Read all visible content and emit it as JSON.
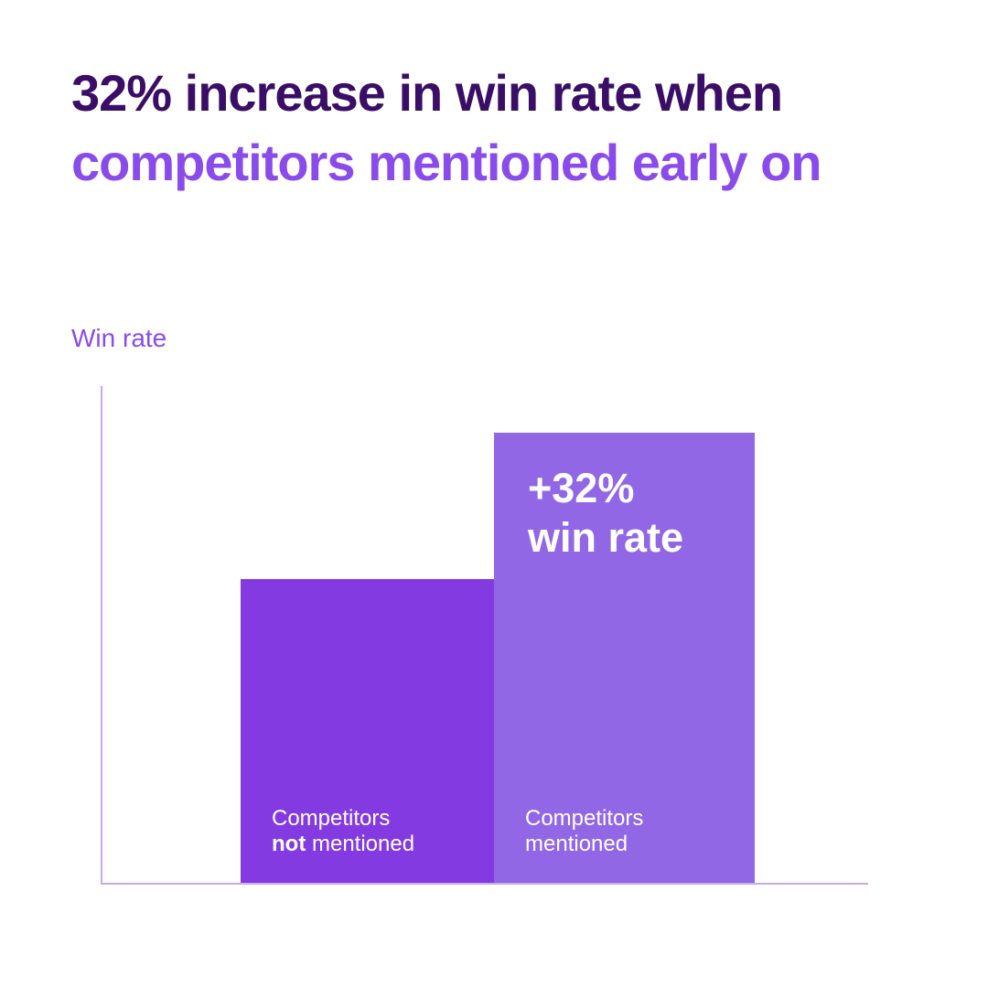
{
  "title": {
    "line1": "32% increase in win rate when",
    "line2": "competitors mentioned early on"
  },
  "chart": {
    "y_axis_label": "Win rate",
    "bars": [
      {
        "label_line1": "Competitors",
        "label_line2_bold": "not",
        "label_line2_rest": " mentioned",
        "color": "#833ae0"
      },
      {
        "label_line1": "Competitors",
        "label_line2": "mentioned",
        "annotation_line1": "+32%",
        "annotation_line2": "win rate",
        "color": "#9167e5"
      }
    ]
  },
  "chart_data": {
    "type": "bar",
    "title": "32% increase in win rate when competitors mentioned early on",
    "categories": [
      "Competitors not mentioned",
      "Competitors mentioned"
    ],
    "values": [
      100,
      132
    ],
    "values_note": "relative win rate index; no numeric axis shown, right bar annotated +32% win rate",
    "xlabel": "",
    "ylabel": "Win rate",
    "annotations": [
      "+32% win rate"
    ],
    "grid": false,
    "legend": false,
    "bar_colors": [
      "#833ae0",
      "#9167e5"
    ]
  },
  "colors": {
    "background": "#ffffff",
    "title_dark_purple": "#3a0e66",
    "title_bright_purple": "#8a4beb",
    "axis_light_purple": "#c9a8ed",
    "bar_left": "#833ae0",
    "bar_right": "#9167e5",
    "bar_text": "#ffffff"
  }
}
